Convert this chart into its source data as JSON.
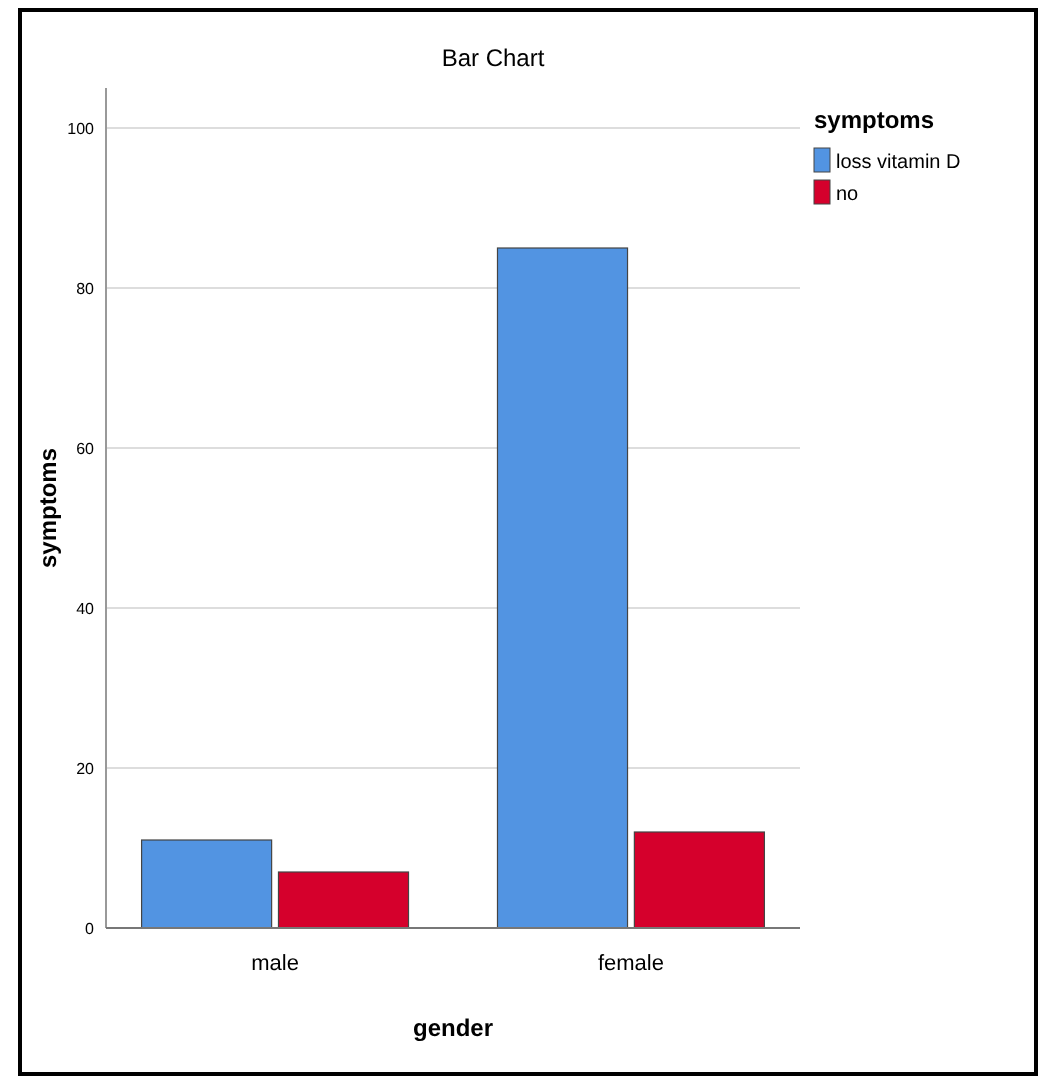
{
  "chart_data": {
    "type": "bar",
    "title": "Bar Chart",
    "xlabel": "gender",
    "ylabel": "symptoms",
    "legend_title": "symptoms",
    "categories": [
      "male",
      "female"
    ],
    "series": [
      {
        "name": "loss vitamin D",
        "color": "#5294e2",
        "values": [
          11,
          85
        ]
      },
      {
        "name": "no",
        "color": "#d5002c",
        "values": [
          7,
          12
        ]
      }
    ],
    "ylim": [
      0,
      105
    ],
    "yticks": [
      0,
      20,
      40,
      60,
      80,
      100
    ],
    "grid": "y",
    "legend": "top right"
  }
}
